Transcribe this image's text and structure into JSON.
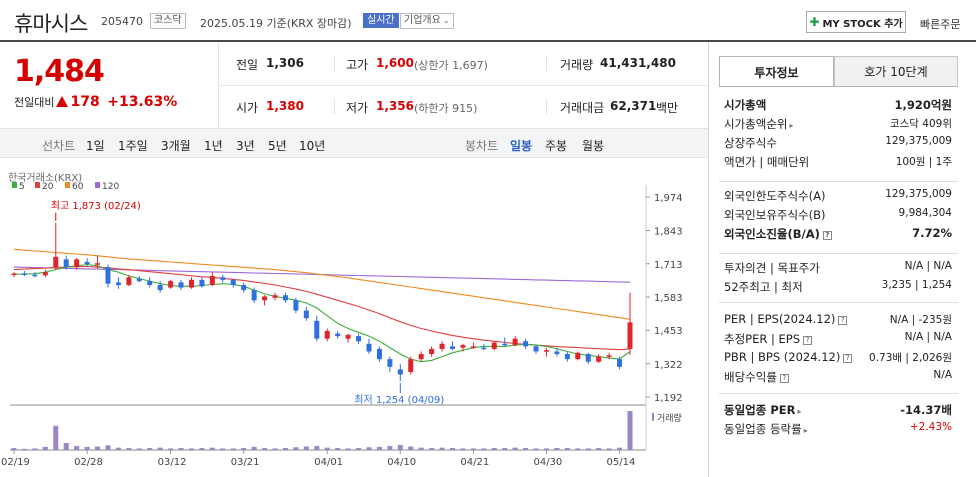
{
  "header": {
    "name": "휴마시스",
    "code": "205470",
    "market": "코스닥",
    "date_text": "2025.05.19 기준(KRX 장마감)",
    "realtime_label": "실시간",
    "company_info_label": "기업개요",
    "mystock_label": "MY STOCK 추가",
    "quick_order_label": "빠른주문"
  },
  "price": {
    "current": "1,484",
    "change_label": "전일대비",
    "change": "178",
    "change_pct": "+13.63%",
    "prev_close_label": "전일",
    "prev_close": "1,306",
    "high_label": "고가",
    "high": "1,600",
    "upper_limit": "(상한가 1,697)",
    "volume_label": "거래량",
    "volume": "41,431,480",
    "open_label": "시가",
    "open": "1,380",
    "low_label": "저가",
    "low": "1,356",
    "lower_limit": "(하한가 915)",
    "amount_label": "거래대금",
    "amount": "62,371",
    "amount_unit": "백만"
  },
  "period_tabs": {
    "line_label": "선차트",
    "items": [
      "1일",
      "1주일",
      "3개월",
      "1년",
      "3년",
      "5년",
      "10년"
    ],
    "candle_label": "봉차트",
    "candle_items": [
      "일봉",
      "주봉",
      "월봉"
    ],
    "active": "일봉"
  },
  "chart_data": {
    "type": "candlestick",
    "source": "한국거래소(KRX)",
    "legend": [
      {
        "name": "5",
        "color": "#3cae3c"
      },
      {
        "name": "20",
        "color": "#e04040"
      },
      {
        "name": "60",
        "color": "#f08a20"
      },
      {
        "name": "120",
        "color": "#9a6ad8"
      }
    ],
    "y_ticks": [
      "1,974",
      "1,843",
      "1,713",
      "1,583",
      "1,453",
      "1,322",
      "1,192"
    ],
    "ylim": [
      1192,
      1974
    ],
    "x_labels": [
      "02/19",
      "02/28",
      "03/12",
      "03/21",
      "04/01",
      "04/10",
      "04/21",
      "04/30",
      "05/14"
    ],
    "x_label_index": [
      0,
      7,
      15,
      22,
      30,
      37,
      44,
      51,
      58
    ],
    "high_annotation": "최고 1,873 (02/24)",
    "low_annotation": "최저 1,254 (04/09)",
    "volume_label": "거래량",
    "candles": [
      [
        1670,
        1680,
        1660,
        1675
      ],
      [
        1675,
        1685,
        1665,
        1670
      ],
      [
        1670,
        1680,
        1660,
        1668
      ],
      [
        1668,
        1690,
        1660,
        1680
      ],
      [
        1700,
        1873,
        1690,
        1740
      ],
      [
        1730,
        1745,
        1690,
        1700
      ],
      [
        1700,
        1735,
        1690,
        1730
      ],
      [
        1720,
        1735,
        1700,
        1712
      ],
      [
        1712,
        1745,
        1695,
        1715
      ],
      [
        1700,
        1710,
        1620,
        1635
      ],
      [
        1640,
        1660,
        1615,
        1630
      ],
      [
        1630,
        1670,
        1625,
        1660
      ],
      [
        1655,
        1665,
        1640,
        1645
      ],
      [
        1645,
        1660,
        1620,
        1630
      ],
      [
        1630,
        1645,
        1600,
        1610
      ],
      [
        1620,
        1650,
        1615,
        1645
      ],
      [
        1640,
        1650,
        1610,
        1620
      ],
      [
        1620,
        1660,
        1615,
        1650
      ],
      [
        1650,
        1660,
        1620,
        1625
      ],
      [
        1630,
        1680,
        1625,
        1665
      ],
      [
        1660,
        1670,
        1640,
        1650
      ],
      [
        1650,
        1655,
        1620,
        1630
      ],
      [
        1630,
        1640,
        1600,
        1610
      ],
      [
        1610,
        1620,
        1560,
        1570
      ],
      [
        1570,
        1590,
        1550,
        1585
      ],
      [
        1580,
        1600,
        1570,
        1590
      ],
      [
        1590,
        1600,
        1560,
        1570
      ],
      [
        1570,
        1580,
        1520,
        1530
      ],
      [
        1530,
        1545,
        1490,
        1500
      ],
      [
        1490,
        1510,
        1410,
        1420
      ],
      [
        1420,
        1460,
        1410,
        1450
      ],
      [
        1440,
        1450,
        1420,
        1430
      ],
      [
        1420,
        1440,
        1405,
        1435
      ],
      [
        1430,
        1440,
        1400,
        1410
      ],
      [
        1400,
        1420,
        1360,
        1370
      ],
      [
        1380,
        1390,
        1330,
        1340
      ],
      [
        1340,
        1350,
        1290,
        1310
      ],
      [
        1300,
        1320,
        1254,
        1280
      ],
      [
        1290,
        1350,
        1280,
        1340
      ],
      [
        1340,
        1370,
        1330,
        1360
      ],
      [
        1360,
        1390,
        1350,
        1380
      ],
      [
        1380,
        1410,
        1370,
        1400
      ],
      [
        1390,
        1410,
        1375,
        1380
      ],
      [
        1385,
        1400,
        1370,
        1395
      ],
      [
        1390,
        1405,
        1380,
        1390
      ],
      [
        1385,
        1400,
        1375,
        1380
      ],
      [
        1380,
        1410,
        1375,
        1405
      ],
      [
        1400,
        1425,
        1390,
        1395
      ],
      [
        1395,
        1430,
        1390,
        1420
      ],
      [
        1410,
        1420,
        1380,
        1390
      ],
      [
        1390,
        1395,
        1360,
        1370
      ],
      [
        1370,
        1385,
        1350,
        1375
      ],
      [
        1370,
        1385,
        1350,
        1360
      ],
      [
        1360,
        1370,
        1330,
        1340
      ],
      [
        1340,
        1370,
        1335,
        1365
      ],
      [
        1360,
        1365,
        1320,
        1330
      ],
      [
        1330,
        1360,
        1325,
        1350
      ],
      [
        1350,
        1365,
        1340,
        1355
      ],
      [
        1340,
        1350,
        1300,
        1310
      ],
      [
        1380,
        1600,
        1356,
        1484
      ]
    ],
    "ma5": [
      1672,
      1673,
      1674,
      1680,
      1690,
      1700,
      1705,
      1710,
      1705,
      1690,
      1680,
      1665,
      1655,
      1645,
      1635,
      1628,
      1625,
      1625,
      1628,
      1632,
      1635,
      1632,
      1625,
      1610,
      1595,
      1585,
      1578,
      1570,
      1560,
      1540,
      1510,
      1480,
      1460,
      1445,
      1430,
      1410,
      1385,
      1360,
      1340,
      1330,
      1335,
      1350,
      1365,
      1375,
      1385,
      1390,
      1390,
      1390,
      1395,
      1398,
      1395,
      1390,
      1380,
      1370,
      1360,
      1355,
      1350,
      1345,
      1340,
      1370
    ],
    "ma20": [
      1690,
      1692,
      1694,
      1696,
      1698,
      1700,
      1702,
      1702,
      1700,
      1697,
      1693,
      1690,
      1686,
      1682,
      1678,
      1674,
      1670,
      1666,
      1662,
      1660,
      1656,
      1652,
      1648,
      1642,
      1636,
      1630,
      1622,
      1614,
      1605,
      1594,
      1582,
      1570,
      1558,
      1546,
      1532,
      1518,
      1502,
      1486,
      1472,
      1460,
      1450,
      1441,
      1433,
      1426,
      1420,
      1414,
      1410,
      1405,
      1401,
      1398,
      1395,
      1392,
      1389,
      1387,
      1385,
      1383,
      1381,
      1379,
      1377,
      1380
    ],
    "ma60": [
      1770,
      1766,
      1763,
      1760,
      1757,
      1754,
      1751,
      1748,
      1744,
      1740,
      1736,
      1732,
      1729,
      1726,
      1723,
      1720,
      1717,
      1714,
      1711,
      1708,
      1705,
      1702,
      1699,
      1696,
      1693,
      1690,
      1686,
      1682,
      1678,
      1673,
      1668,
      1663,
      1658,
      1652,
      1646,
      1640,
      1634,
      1628,
      1622,
      1616,
      1610,
      1604,
      1598,
      1592,
      1586,
      1580,
      1574,
      1568,
      1562,
      1556,
      1550,
      1544,
      1538,
      1532,
      1526,
      1520,
      1514,
      1508,
      1502,
      1496
    ],
    "ma120": [
      1700,
      1699,
      1698,
      1697,
      1696,
      1695,
      1694,
      1693,
      1692,
      1691,
      1690,
      1689,
      1688,
      1687,
      1686,
      1685,
      1684,
      1683,
      1682,
      1681,
      1680,
      1679,
      1678,
      1677,
      1676,
      1675,
      1674,
      1673,
      1672,
      1671,
      1670,
      1669,
      1668,
      1667,
      1666,
      1665,
      1664,
      1663,
      1662,
      1661,
      1660,
      1659,
      1658,
      1657,
      1656,
      1655,
      1654,
      1653,
      1652,
      1651,
      1650,
      1649,
      1648,
      1647,
      1646,
      1645,
      1644,
      1643,
      1642,
      1641
    ],
    "volume_rel": [
      0.05,
      0.03,
      0.04,
      0.08,
      0.62,
      0.18,
      0.1,
      0.08,
      0.09,
      0.12,
      0.06,
      0.05,
      0.04,
      0.05,
      0.06,
      0.04,
      0.05,
      0.04,
      0.05,
      0.06,
      0.04,
      0.04,
      0.05,
      0.08,
      0.05,
      0.04,
      0.05,
      0.07,
      0.09,
      0.1,
      0.06,
      0.05,
      0.04,
      0.05,
      0.07,
      0.08,
      0.1,
      0.13,
      0.09,
      0.06,
      0.05,
      0.06,
      0.05,
      0.04,
      0.04,
      0.04,
      0.05,
      0.05,
      0.06,
      0.05,
      0.04,
      0.04,
      0.05,
      0.05,
      0.04,
      0.04,
      0.05,
      0.04,
      0.06,
      1.0
    ]
  },
  "invest": {
    "tab1": "투자정보",
    "tab2": "호가 10단계",
    "rows1": [
      {
        "k": "시가총액",
        "v": "1,920억원",
        "bold": true
      },
      {
        "k": "시가총액순위",
        "v": "코스닥 409위",
        "arrow": true
      },
      {
        "k": "상장주식수",
        "v": "129,375,009"
      },
      {
        "k": "액면가 | 매매단위",
        "v": "100원 | 1주"
      }
    ],
    "rows2": [
      {
        "k": "외국인한도주식수(A)",
        "v": "129,375,009"
      },
      {
        "k": "외국인보유주식수(B)",
        "v": "9,984,304"
      },
      {
        "k": "외국인소진율(B/A)",
        "v": "7.72%",
        "bold": true,
        "q": true
      }
    ],
    "rows3": [
      {
        "k": "투자의견 | 목표주가",
        "v": "N/A | N/A"
      },
      {
        "k": "52주최고 | 최저",
        "v": "3,235 | 1,254"
      }
    ],
    "rows4": [
      {
        "k": "PER | EPS(2024.12)",
        "v": "N/A | -235원",
        "q": true
      },
      {
        "k": "추정PER | EPS",
        "v": "N/A | N/A",
        "q": true
      },
      {
        "k": "PBR | BPS (2024.12)",
        "v": "0.73배 | 2,026원",
        "q": true
      },
      {
        "k": "배당수익률",
        "v": "N/A",
        "q": true
      }
    ],
    "rows5": [
      {
        "k": "동일업종 PER",
        "v": "-14.37배",
        "bold": true,
        "arrow": true
      },
      {
        "k": "동일업종 등락률",
        "v": "+2.43%",
        "red": true,
        "arrow": true
      }
    ]
  }
}
